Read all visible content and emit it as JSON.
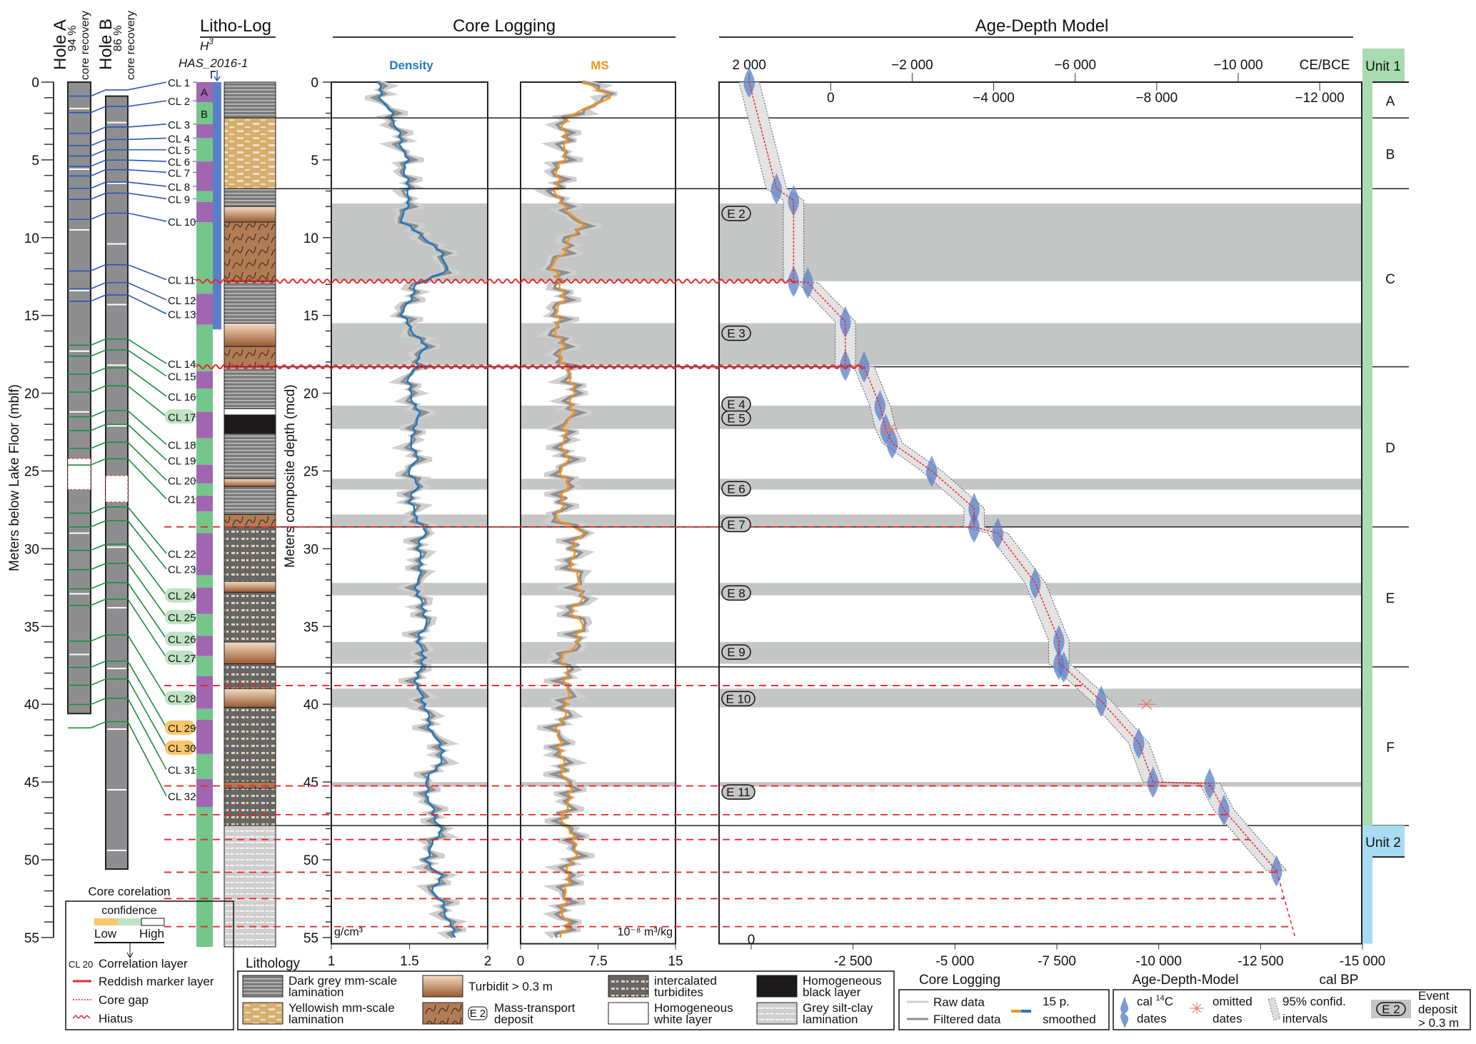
{
  "titles": {
    "litho_log": "Litho-Log",
    "core_logging": "Core Logging",
    "age_depth_model": "Age-Depth Model"
  },
  "holes": {
    "hole_a": {
      "name": "Hole A",
      "recovery": "94 %",
      "recovery_label": "core recovery",
      "top_mblf": 0,
      "bottom_mblf": 40.6,
      "gaps": [
        [
          24.2,
          26.2
        ]
      ]
    },
    "hole_b": {
      "name": "Hole B",
      "recovery": "86 %",
      "recovery_label": "core recovery",
      "top_mblf": 0.9,
      "bottom_mblf": 50.6,
      "gaps": [
        [
          25.3,
          27.0
        ]
      ]
    }
  },
  "core_name": {
    "h3": "H",
    "h3_sup": "3",
    "site": "HAS_2016-1"
  },
  "axes": {
    "left_label": "Meters below Lake Floor (mblf)",
    "mcd_label": "Meters composite depth (mcd)",
    "depth_ticks": [
      "0",
      "5",
      "10",
      "15",
      "20",
      "25",
      "30",
      "35",
      "40",
      "45",
      "50",
      "55"
    ],
    "depth_range": [
      0,
      55
    ],
    "density_ticks": [
      "1",
      "1.5",
      "2"
    ],
    "density_unit": "g/cm³",
    "density_title": "Density",
    "ms_ticks": [
      "0",
      "7.5",
      "15"
    ],
    "ms_unit": "10⁻⁸ m³/kg",
    "ms_title": "MS",
    "ce_ticks_top": [
      "2 000",
      "−2 000",
      "−6 000",
      "−10 000"
    ],
    "ce_ticks_low": [
      "0",
      "−4 000",
      "−8 000",
      "−12 000"
    ],
    "ce_label": "CE/BCE",
    "bp_ticks": [
      "0",
      "-2 500",
      "-5 000",
      "-7 500",
      "-10 000",
      "-12 500",
      "-15 000"
    ],
    "bp_label": "cal BP",
    "bottom_core_logging": "Core Logging",
    "bottom_age_model": "Age-Depth-Model",
    "lithology_label": "Lithology"
  },
  "correlation_layers": [
    {
      "label": "CL 1",
      "depth": 0,
      "conf": "high"
    },
    {
      "label": "CL 2",
      "depth": 1.2,
      "conf": "high"
    },
    {
      "label": "CL 3",
      "depth": 2.7,
      "conf": "high"
    },
    {
      "label": "CL 4",
      "depth": 3.6,
      "conf": "high"
    },
    {
      "label": "CL 5",
      "depth": 4.35,
      "conf": "high"
    },
    {
      "label": "CL 6",
      "depth": 5.1,
      "conf": "high"
    },
    {
      "label": "CL 7",
      "depth": 5.8,
      "conf": "high"
    },
    {
      "label": "CL 8",
      "depth": 6.7,
      "conf": "high"
    },
    {
      "label": "CL 9",
      "depth": 7.5,
      "conf": "high"
    },
    {
      "label": "CL 10",
      "depth": 8.95,
      "conf": "high"
    },
    {
      "label": "CL 11",
      "depth": 12.7,
      "conf": "high"
    },
    {
      "label": "CL 12",
      "depth": 14.0,
      "conf": "high"
    },
    {
      "label": "CL 13",
      "depth": 14.9,
      "conf": "high"
    },
    {
      "label": "CL 14",
      "depth": 18.1,
      "conf": "high"
    },
    {
      "label": "CL 15",
      "depth": 18.9,
      "conf": "high"
    },
    {
      "label": "CL 16",
      "depth": 20.2,
      "conf": "high"
    },
    {
      "label": "CL 17",
      "depth": 21.5,
      "conf": "medium"
    },
    {
      "label": "CL 18",
      "depth": 23.3,
      "conf": "high"
    },
    {
      "label": "CL 19",
      "depth": 24.3,
      "conf": "high"
    },
    {
      "label": "CL 20",
      "depth": 25.6,
      "conf": "high"
    },
    {
      "label": "CL 21",
      "depth": 26.8,
      "conf": "high"
    },
    {
      "label": "CL 22",
      "depth": 30.3,
      "conf": "high"
    },
    {
      "label": "CL 23",
      "depth": 31.3,
      "conf": "high"
    },
    {
      "label": "CL 24",
      "depth": 33.0,
      "conf": "medium"
    },
    {
      "label": "CL 25",
      "depth": 34.4,
      "conf": "medium"
    },
    {
      "label": "CL 26",
      "depth": 35.8,
      "conf": "medium"
    },
    {
      "label": "CL 27",
      "depth": 37.0,
      "conf": "medium"
    },
    {
      "label": "CL 28",
      "depth": 39.6,
      "conf": "medium"
    },
    {
      "label": "CL 29",
      "depth": 41.5,
      "conf": "low"
    },
    {
      "label": "CL 30",
      "depth": 42.8,
      "conf": "low"
    },
    {
      "label": "CL 31",
      "depth": 44.2,
      "conf": "high"
    },
    {
      "label": "CL 32",
      "depth": 45.9,
      "conf": "high"
    }
  ],
  "subunit_column": {
    "labels": {
      "A": "A",
      "B": "B"
    },
    "segments": [
      [
        0,
        1.3,
        "p"
      ],
      [
        1.3,
        2.7,
        "g"
      ],
      [
        2.7,
        3.6,
        "p"
      ],
      [
        3.6,
        5.1,
        "g"
      ],
      [
        5.1,
        7.0,
        "p"
      ],
      [
        7.0,
        7.7,
        "g"
      ],
      [
        7.7,
        9.0,
        "p"
      ],
      [
        9.0,
        13.6,
        "g"
      ],
      [
        13.6,
        15.6,
        "p"
      ],
      [
        15.6,
        18.6,
        "g"
      ],
      [
        18.6,
        19.7,
        "p"
      ],
      [
        19.7,
        21.2,
        "g"
      ],
      [
        21.2,
        22.9,
        "p"
      ],
      [
        22.9,
        24.6,
        "g"
      ],
      [
        24.6,
        25.8,
        "p"
      ],
      [
        25.8,
        26.6,
        "g"
      ],
      [
        26.6,
        27.6,
        "p"
      ],
      [
        27.6,
        29.0,
        "g"
      ],
      [
        29.0,
        31.7,
        "p"
      ],
      [
        31.7,
        32.5,
        "g"
      ],
      [
        32.5,
        34.2,
        "p"
      ],
      [
        34.2,
        35.6,
        "g"
      ],
      [
        35.6,
        36.9,
        "p"
      ],
      [
        36.9,
        38.2,
        "g"
      ],
      [
        38.2,
        40.3,
        "p"
      ],
      [
        40.3,
        41.0,
        "g"
      ],
      [
        41.0,
        43.2,
        "p"
      ],
      [
        43.2,
        44.8,
        "g"
      ],
      [
        44.8,
        46.6,
        "p"
      ],
      [
        46.6,
        56,
        "g"
      ]
    ],
    "blue_segments": [
      [
        0,
        15.9
      ],
      [
        2.7,
        3.7
      ],
      [
        6.5,
        7.5
      ]
    ]
  },
  "lithology": [
    [
      0,
      2.3,
      "dark"
    ],
    [
      2.3,
      6.85,
      "yellow"
    ],
    [
      6.85,
      8.0,
      "dark"
    ],
    [
      8.0,
      9.0,
      "turb"
    ],
    [
      9.0,
      12.8,
      "mtd"
    ],
    [
      12.8,
      15.5,
      "dark"
    ],
    [
      15.5,
      17.0,
      "turb"
    ],
    [
      17.0,
      18.3,
      "mtd"
    ],
    [
      18.3,
      21.0,
      "dark"
    ],
    [
      21.0,
      21.4,
      "white"
    ],
    [
      21.4,
      22.6,
      "black"
    ],
    [
      22.6,
      25.5,
      "dark"
    ],
    [
      25.5,
      26.0,
      "turb"
    ],
    [
      26.0,
      27.8,
      "dark"
    ],
    [
      27.8,
      28.6,
      "mtd"
    ],
    [
      28.6,
      32.1,
      "inter"
    ],
    [
      32.1,
      32.8,
      "turb"
    ],
    [
      32.8,
      36.0,
      "inter"
    ],
    [
      36.0,
      37.4,
      "turb"
    ],
    [
      37.4,
      39.0,
      "inter"
    ],
    [
      39.0,
      40.2,
      "turb"
    ],
    [
      40.2,
      45.0,
      "inter"
    ],
    [
      45.0,
      45.4,
      "mtd"
    ],
    [
      45.4,
      47.8,
      "inter"
    ],
    [
      47.8,
      56,
      "silt"
    ]
  ],
  "units": {
    "unit1": "Unit 1",
    "unit2": "Unit 2",
    "subunits": [
      {
        "label": "A",
        "top": 0,
        "bottom": 2.3
      },
      {
        "label": "B",
        "top": 2.3,
        "bottom": 6.85
      },
      {
        "label": "C",
        "top": 6.85,
        "bottom": 18.3
      },
      {
        "label": "D",
        "top": 18.3,
        "bottom": 28.6
      },
      {
        "label": "E",
        "top": 28.6,
        "bottom": 37.6
      },
      {
        "label": "F",
        "top": 37.6,
        "bottom": 47.8
      }
    ],
    "unit1_bottom": 47.8
  },
  "events": [
    {
      "label": "E 2",
      "top": 7.8,
      "bottom": 12.8
    },
    {
      "label": "E 3",
      "top": 15.5,
      "bottom": 18.2
    },
    {
      "label": "E 4",
      "top": 20.8,
      "bottom": 21.3
    },
    {
      "label": "E 5",
      "top": 21.3,
      "bottom": 22.3
    },
    {
      "label": "E 6",
      "top": 25.5,
      "bottom": 26.2
    },
    {
      "label": "E 7",
      "top": 27.8,
      "bottom": 28.6
    },
    {
      "label": "E 8",
      "top": 32.2,
      "bottom": 33.0
    },
    {
      "label": "E 9",
      "top": 36.0,
      "bottom": 37.4
    },
    {
      "label": "E 10",
      "top": 39.0,
      "bottom": 40.2
    },
    {
      "label": "E 11",
      "top": 45.0,
      "bottom": 45.3
    }
  ],
  "hiatus_depths": [
    12.8,
    18.3
  ],
  "marker_depths": [
    28.6,
    38.8,
    45.25,
    47.1,
    48.7,
    50.8,
    52.5,
    54.3
  ],
  "chart_data": [
    {
      "type": "line",
      "title": "Density",
      "xlabel": "g/cm³",
      "ylabel": "Meters composite depth (mcd)",
      "xlim": [
        1,
        2
      ],
      "ylim": [
        55,
        0
      ],
      "depth": [
        0,
        1,
        2,
        3,
        4,
        5,
        6,
        7,
        8,
        9,
        10,
        11,
        12,
        13,
        14,
        15,
        16,
        17,
        18,
        19,
        20,
        21,
        22,
        23,
        24,
        25,
        26,
        27,
        28,
        29,
        30,
        31,
        32,
        33,
        34,
        35,
        36,
        37,
        38,
        39,
        40,
        41,
        42,
        43,
        44,
        45,
        46,
        47,
        48,
        49,
        50,
        51,
        52,
        53,
        54,
        55
      ],
      "values": [
        1.3,
        1.32,
        1.38,
        1.42,
        1.45,
        1.48,
        1.47,
        1.5,
        1.48,
        1.45,
        1.6,
        1.7,
        1.75,
        1.55,
        1.5,
        1.45,
        1.52,
        1.6,
        1.55,
        1.5,
        1.5,
        1.55,
        1.55,
        1.5,
        1.55,
        1.5,
        1.55,
        1.5,
        1.55,
        1.6,
        1.55,
        1.58,
        1.55,
        1.55,
        1.6,
        1.6,
        1.55,
        1.6,
        1.55,
        1.55,
        1.6,
        1.62,
        1.65,
        1.72,
        1.68,
        1.6,
        1.62,
        1.65,
        1.7,
        1.65,
        1.6,
        1.7,
        1.65,
        1.72,
        1.75,
        1.8
      ]
    },
    {
      "type": "line",
      "title": "MS",
      "xlabel": "10⁻⁸ m³/kg",
      "xlim": [
        0,
        15
      ],
      "ylim": [
        55,
        0
      ],
      "values": [
        6,
        9,
        5,
        4,
        4.5,
        4,
        3.5,
        3.5,
        4,
        6,
        5,
        4,
        3,
        4,
        4,
        3.5,
        3.5,
        4,
        4,
        5,
        5,
        5,
        4.5,
        4,
        4.5,
        4,
        4.5,
        4,
        3.5,
        6,
        5,
        5,
        5.5,
        6,
        5,
        6,
        5.5,
        4,
        4.5,
        4.5,
        4.5,
        4,
        3.5,
        4,
        4,
        4.5,
        5,
        4,
        4.5,
        5.5,
        5,
        4.5,
        4.5,
        4,
        4.5,
        4
      ]
    },
    {
      "type": "line",
      "title": "Age-Depth Model",
      "xlabel": "cal BP",
      "xlim": [
        0,
        -15000
      ],
      "ylim": [
        55,
        0
      ],
      "age_bp": [
        -50,
        620,
        1040,
        1040,
        1390,
        2310,
        2310,
        2770,
        3160,
        3300,
        3460,
        4430,
        5470,
        5470,
        6050,
        6970,
        7550,
        7550,
        7670,
        8590,
        9510,
        9860,
        11250,
        11600,
        12890
      ],
      "depth": [
        0,
        6.85,
        7.6,
        12.8,
        12.9,
        15.4,
        18.2,
        18.3,
        20.8,
        22.3,
        23.2,
        25,
        27.4,
        28.6,
        29,
        32.2,
        35.9,
        37.4,
        37.6,
        39.8,
        42.5,
        45,
        45.1,
        46.8,
        50.7
      ],
      "extrapolation": {
        "age_bp": [
          12890,
          13350
        ],
        "depth": [
          50.7,
          55
        ]
      },
      "omitted_dates": [
        {
          "age_bp": 3400,
          "depth": 22.3
        },
        {
          "age_bp": 9700,
          "depth": 40.0
        }
      ]
    }
  ],
  "legend": {
    "core_corr_title": "Core corelation",
    "confidence": "confidence",
    "low": "Low",
    "high": "High",
    "cl_example": "CL 20",
    "correlation_layer": "Correlation layer",
    "reddish": "Reddish marker layer",
    "core_gap": "Core gap",
    "hiatus": "Hiatus",
    "litho": [
      {
        "key": "dark",
        "l1": "Dark grey mm-scale",
        "l2": "lamination"
      },
      {
        "key": "yellow",
        "l1": "Yellowish mm-scale",
        "l2": "lamination"
      },
      {
        "key": "turb",
        "l1": "Turbidit > 0.3 m",
        "l2": ""
      },
      {
        "key": "mtd",
        "l1": "Mass-transport",
        "l2": "deposit",
        "tag": "E 2"
      },
      {
        "key": "inter",
        "l1": "intercalated",
        "l2": "turbidites"
      },
      {
        "key": "white",
        "l1": "Homogeneous",
        "l2": "white layer"
      },
      {
        "key": "black",
        "l1": "Homogeneous",
        "l2": "black layer"
      },
      {
        "key": "silt",
        "l1": "Grey silt-clay",
        "l2": "lamination"
      }
    ],
    "raw": "Raw data",
    "filtered": "Filtered data",
    "smoothed1": "15 p.",
    "smoothed2": "smoothed",
    "cal1": "cal ",
    "cal_sup": "14",
    "cal2": "C",
    "cal3": "dates",
    "omit1": "omitted",
    "omit2": "dates",
    "conf1": "95% confid.",
    "conf2": "intervals",
    "ev_tag": "E 2",
    "ev1": "Event",
    "ev2": "deposit",
    "ev3": "> 0.3 m"
  },
  "colors": {
    "density": "#1f78c1",
    "ms": "#f7931e",
    "raw": "#cfcfcf",
    "filtered": "#8f8f8f",
    "band": "#c4c6c5",
    "age": "#5b7fc7",
    "purple": "#a066b0",
    "green": "#74c68a",
    "unit1": "#a8dcb0",
    "unit2": "#a9dcf2",
    "red": "#e8262a",
    "blue_line": "#2857b8",
    "green_line": "#1a8f3c",
    "low": "#f9c66a",
    "med": "#bfe3c4"
  }
}
